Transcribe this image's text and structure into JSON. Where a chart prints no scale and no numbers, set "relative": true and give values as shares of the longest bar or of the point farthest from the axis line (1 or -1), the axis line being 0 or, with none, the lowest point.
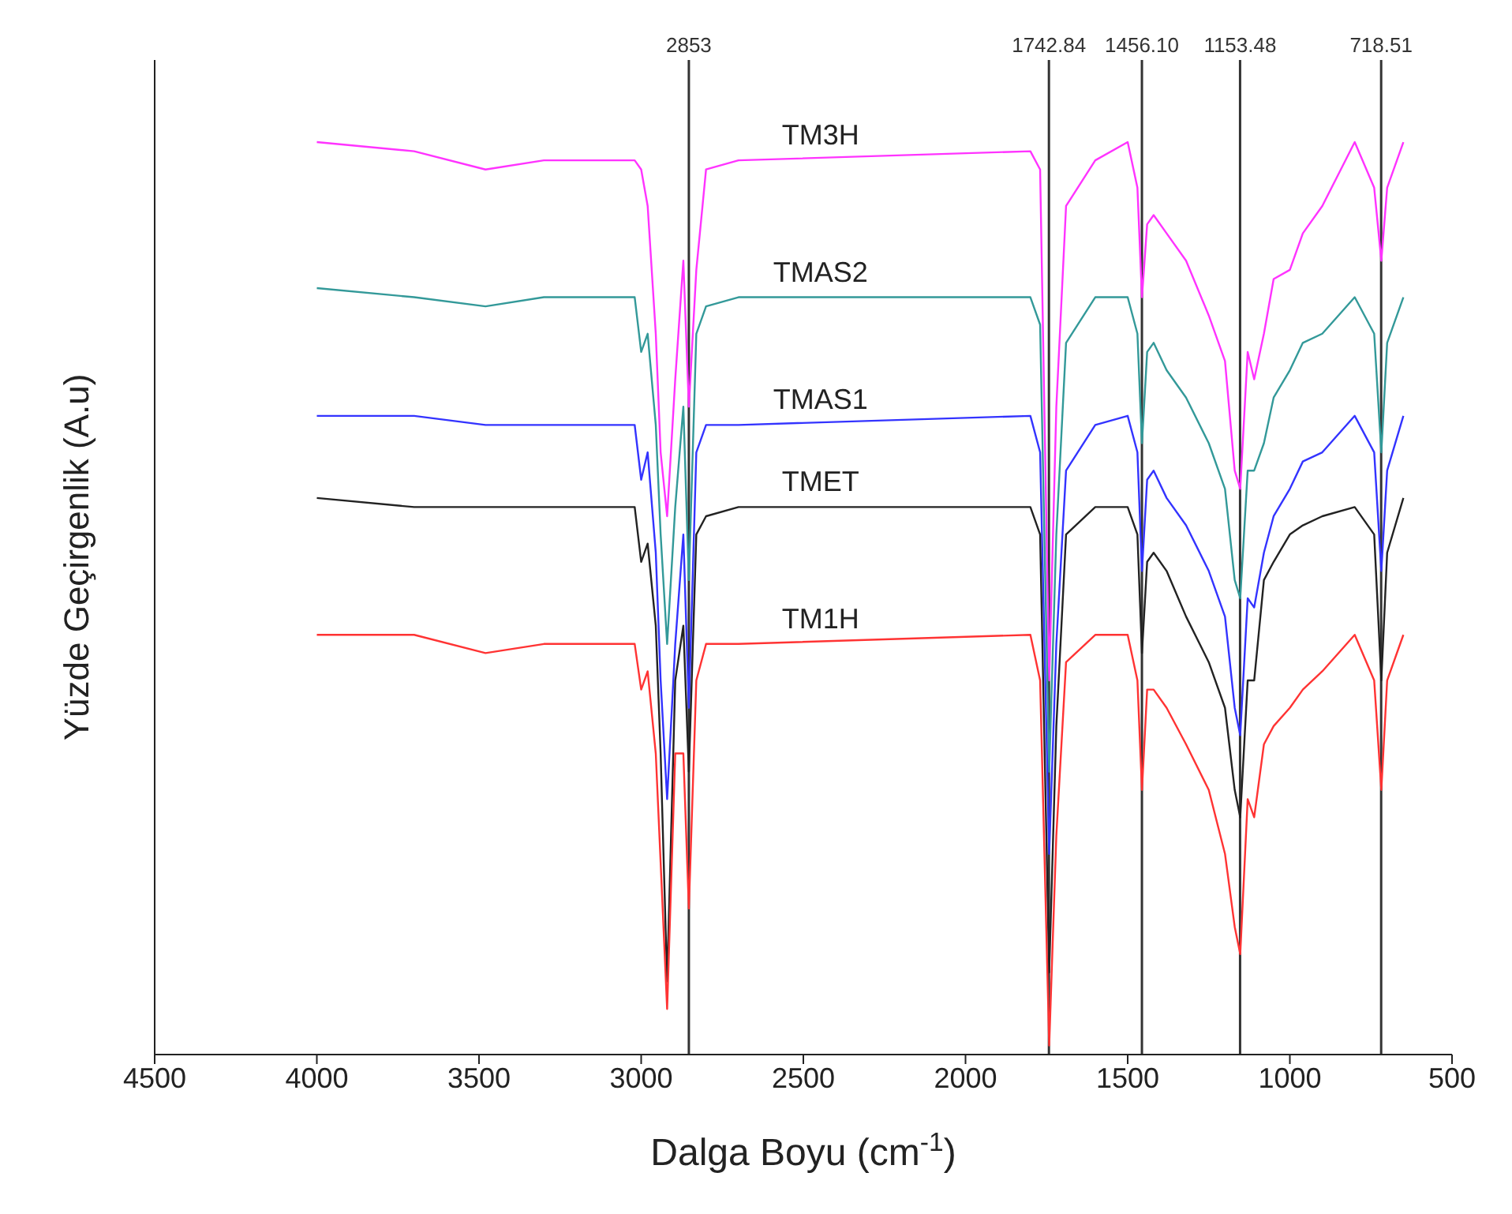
{
  "chart_data": {
    "type": "line",
    "relative": true,
    "xlabel": "Dalga Boyu (cm$^{-1}$)",
    "ylabel": "Yüzde Geçirgenlik (A.u)",
    "x": [
      4000,
      3700,
      3480,
      3300,
      3020,
      3000,
      2980,
      2955,
      2940,
      2920,
      2895,
      2870,
      2853,
      2830,
      2800,
      2700,
      1800,
      1770,
      1742,
      1720,
      1690,
      1600,
      1500,
      1470,
      1456,
      1440,
      1420,
      1380,
      1320,
      1250,
      1200,
      1170,
      1153,
      1130,
      1110,
      1080,
      1050,
      1000,
      960,
      900,
      800,
      740,
      718,
      700,
      650
    ],
    "xlim": [
      4500,
      500
    ],
    "xticks": [
      4500,
      4000,
      3500,
      3000,
      2500,
      2000,
      1500,
      1000,
      500
    ],
    "tick_labels": "x",
    "series": [
      {
        "name": "TM3H",
        "color": "#ff33ff",
        "values": [
          1.0,
          0.99,
          0.97,
          0.98,
          0.98,
          0.97,
          0.93,
          0.79,
          0.66,
          0.59,
          0.74,
          0.87,
          0.71,
          0.86,
          0.97,
          0.98,
          0.99,
          0.97,
          0.41,
          0.71,
          0.93,
          0.98,
          1.0,
          0.95,
          0.83,
          0.91,
          0.92,
          0.9,
          0.87,
          0.81,
          0.76,
          0.64,
          0.62,
          0.77,
          0.74,
          0.79,
          0.85,
          0.86,
          0.9,
          0.93,
          1.0,
          0.95,
          0.87,
          0.95,
          1.0
        ]
      },
      {
        "name": "TMAS2",
        "color": "#339999",
        "values": [
          0.84,
          0.83,
          0.82,
          0.83,
          0.83,
          0.77,
          0.79,
          0.69,
          0.57,
          0.45,
          0.6,
          0.71,
          0.52,
          0.79,
          0.82,
          0.83,
          0.83,
          0.8,
          0.31,
          0.57,
          0.78,
          0.83,
          0.83,
          0.79,
          0.67,
          0.77,
          0.78,
          0.75,
          0.72,
          0.67,
          0.62,
          0.52,
          0.5,
          0.64,
          0.64,
          0.67,
          0.72,
          0.75,
          0.78,
          0.79,
          0.83,
          0.79,
          0.66,
          0.78,
          0.83
        ]
      },
      {
        "name": "TMAS1",
        "color": "#3333ff",
        "values": [
          0.7,
          0.7,
          0.69,
          0.69,
          0.69,
          0.63,
          0.66,
          0.55,
          0.41,
          0.28,
          0.45,
          0.57,
          0.38,
          0.66,
          0.69,
          0.69,
          0.7,
          0.66,
          0.22,
          0.45,
          0.64,
          0.69,
          0.7,
          0.66,
          0.53,
          0.63,
          0.64,
          0.61,
          0.58,
          0.53,
          0.48,
          0.38,
          0.35,
          0.5,
          0.49,
          0.55,
          0.59,
          0.62,
          0.65,
          0.66,
          0.7,
          0.66,
          0.53,
          0.64,
          0.7
        ]
      },
      {
        "name": "TMET",
        "color": "#222222",
        "values": [
          0.61,
          0.6,
          0.6,
          0.6,
          0.6,
          0.54,
          0.56,
          0.47,
          0.33,
          0.08,
          0.41,
          0.47,
          0.31,
          0.57,
          0.59,
          0.6,
          0.6,
          0.57,
          0.09,
          0.36,
          0.57,
          0.6,
          0.6,
          0.57,
          0.44,
          0.54,
          0.55,
          0.53,
          0.48,
          0.43,
          0.38,
          0.29,
          0.26,
          0.41,
          0.41,
          0.52,
          0.54,
          0.57,
          0.58,
          0.59,
          0.6,
          0.57,
          0.41,
          0.55,
          0.61
        ]
      },
      {
        "name": "TM1H",
        "color": "#ff3333",
        "values": [
          0.46,
          0.46,
          0.44,
          0.45,
          0.45,
          0.4,
          0.42,
          0.33,
          0.21,
          0.05,
          0.33,
          0.33,
          0.16,
          0.41,
          0.45,
          0.45,
          0.46,
          0.41,
          0.01,
          0.24,
          0.43,
          0.46,
          0.46,
          0.41,
          0.29,
          0.4,
          0.4,
          0.38,
          0.34,
          0.29,
          0.22,
          0.14,
          0.11,
          0.28,
          0.26,
          0.34,
          0.36,
          0.38,
          0.4,
          0.42,
          0.46,
          0.41,
          0.29,
          0.41,
          0.46
        ]
      }
    ],
    "ref_lines": [
      {
        "axis": "x",
        "value": 2853,
        "label": "2853",
        "color": "#333333"
      },
      {
        "axis": "x",
        "value": 1742.84,
        "label": "1742.84",
        "color": "#333333"
      },
      {
        "axis": "x",
        "value": 1456.1,
        "label": "1456.10",
        "color": "#333333"
      },
      {
        "axis": "x",
        "value": 1153.48,
        "label": "1153.48",
        "color": "#333333"
      },
      {
        "axis": "x",
        "value": 718.51,
        "label": "718.51",
        "color": "#333333"
      }
    ]
  }
}
